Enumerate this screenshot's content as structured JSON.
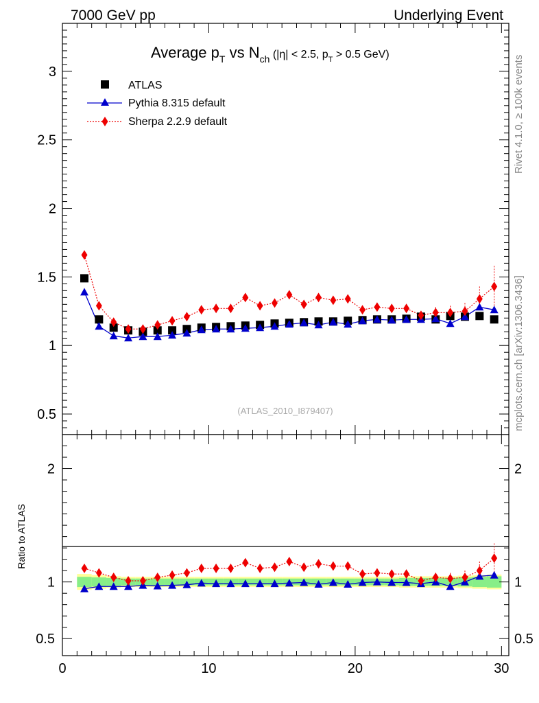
{
  "header": {
    "left": "7000 GeV pp",
    "right": "Underlying Event"
  },
  "side": {
    "rivet": "Rivet 4.1.0, ≥ 100k events",
    "mcplots": "mcplots.cern.ch [arXiv:1306.3436]"
  },
  "plot_title": {
    "main_a": "Average p",
    "sub_a": "T",
    "main_b": " vs N",
    "sub_b": "ch",
    "cut_a": " (|η| < 2.5, p",
    "cut_sub": "T",
    "cut_b": " > 0.5 GeV)"
  },
  "analysis_label": "(ATLAS_2010_I879407)",
  "colors": {
    "atlas": "#000000",
    "pythia": "#0000cc",
    "sherpa": "#ee0000",
    "band_inner": "#88ee88",
    "band_outer": "#ffff99"
  },
  "chart_data": [
    {
      "type": "scatter",
      "name": "main",
      "title": "Average pT vs Nch (|η| < 2.5, pT > 0.5 GeV)",
      "xlabel": "",
      "ylabel": "",
      "xlim": [
        0,
        30.5
      ],
      "ylim": [
        0.35,
        3.35
      ],
      "yticks": [
        0.5,
        1,
        1.5,
        2,
        2.5,
        3
      ],
      "ytick_labels": [
        "0.5",
        "1",
        "1.5",
        "2",
        "2.5",
        "3"
      ],
      "x": [
        1.5,
        2.5,
        3.5,
        4.5,
        5.5,
        6.5,
        7.5,
        8.5,
        9.5,
        10.5,
        11.5,
        12.5,
        13.5,
        14.5,
        15.5,
        16.5,
        17.5,
        18.5,
        19.5,
        20.5,
        21.5,
        22.5,
        23.5,
        24.5,
        25.5,
        26.5,
        27.5,
        28.5,
        29.5
      ],
      "series": [
        {
          "name": "ATLAS",
          "marker": "square",
          "values": [
            1.49,
            1.19,
            1.13,
            1.11,
            1.1,
            1.11,
            1.11,
            1.12,
            1.13,
            1.135,
            1.14,
            1.145,
            1.15,
            1.16,
            1.165,
            1.17,
            1.175,
            1.175,
            1.18,
            1.185,
            1.19,
            1.19,
            1.195,
            1.21,
            1.19,
            1.215,
            1.21,
            1.215,
            1.19
          ]
        },
        {
          "name": "Pythia 8.315 default",
          "marker": "triangle",
          "values": [
            1.39,
            1.14,
            1.07,
            1.055,
            1.065,
            1.065,
            1.075,
            1.09,
            1.115,
            1.12,
            1.12,
            1.125,
            1.13,
            1.14,
            1.155,
            1.165,
            1.15,
            1.17,
            1.155,
            1.18,
            1.19,
            1.185,
            1.19,
            1.19,
            1.195,
            1.16,
            1.21,
            1.28,
            1.26
          ]
        },
        {
          "name": "Sherpa 2.2.9 default",
          "marker": "diamond",
          "values": [
            1.66,
            1.29,
            1.17,
            1.12,
            1.12,
            1.15,
            1.18,
            1.21,
            1.26,
            1.27,
            1.27,
            1.35,
            1.29,
            1.31,
            1.37,
            1.3,
            1.35,
            1.33,
            1.34,
            1.26,
            1.28,
            1.27,
            1.27,
            1.22,
            1.24,
            1.24,
            1.25,
            1.34,
            1.43
          ],
          "errors": [
            0,
            0,
            0,
            0,
            0,
            0,
            0,
            0,
            0,
            0,
            0,
            0,
            0,
            0,
            0,
            0,
            0,
            0,
            0,
            0,
            0.02,
            0.02,
            0.03,
            0.03,
            0.04,
            0.05,
            0.06,
            0.09,
            0.15
          ]
        }
      ],
      "legend": [
        "ATLAS",
        "Pythia 8.315 default",
        "Sherpa 2.2.9 default"
      ],
      "legend_position": "top-left"
    },
    {
      "type": "scatter",
      "name": "ratio",
      "title": "",
      "xlabel": "",
      "ylabel": "Ratio to ATLAS",
      "xlim": [
        0,
        30.5
      ],
      "ylim": [
        0.35,
        2.3
      ],
      "yticks": [
        0.5,
        1,
        2
      ],
      "ytick_labels": [
        "0.5",
        "1",
        "2"
      ],
      "xticks": [
        0,
        10,
        20,
        30
      ],
      "xtick_labels": [
        "0",
        "10",
        "20",
        "30"
      ],
      "x": [
        1.5,
        2.5,
        3.5,
        4.5,
        5.5,
        6.5,
        7.5,
        8.5,
        9.5,
        10.5,
        11.5,
        12.5,
        13.5,
        14.5,
        15.5,
        16.5,
        17.5,
        18.5,
        19.5,
        20.5,
        21.5,
        22.5,
        23.5,
        24.5,
        25.5,
        26.5,
        27.5,
        28.5,
        29.5
      ],
      "band_inner": [
        0.045,
        0.04,
        0.035,
        0.03,
        0.03,
        0.03,
        0.03,
        0.03,
        0.03,
        0.03,
        0.03,
        0.03,
        0.03,
        0.03,
        0.03,
        0.03,
        0.03,
        0.03,
        0.03,
        0.03,
        0.03,
        0.03,
        0.035,
        0.035,
        0.035,
        0.035,
        0.04,
        0.045,
        0.05
      ],
      "band_outer": [
        0.07,
        0.06,
        0.05,
        0.045,
        0.045,
        0.045,
        0.045,
        0.045,
        0.045,
        0.045,
        0.045,
        0.045,
        0.045,
        0.045,
        0.045,
        0.045,
        0.045,
        0.045,
        0.045,
        0.045,
        0.045,
        0.045,
        0.05,
        0.05,
        0.05,
        0.05,
        0.055,
        0.06,
        0.065
      ],
      "series": [
        {
          "name": "Pythia 8.315 default",
          "values": [
            0.94,
            0.96,
            0.96,
            0.96,
            0.97,
            0.965,
            0.97,
            0.975,
            0.99,
            0.985,
            0.985,
            0.985,
            0.985,
            0.985,
            0.99,
            0.995,
            0.98,
            0.995,
            0.98,
            0.995,
            1.0,
            0.995,
            0.995,
            0.985,
            1.0,
            0.96,
            1.0,
            1.05,
            1.06
          ]
        },
        {
          "name": "Sherpa 2.2.9 default",
          "values": [
            1.12,
            1.08,
            1.04,
            1.01,
            1.01,
            1.04,
            1.06,
            1.08,
            1.12,
            1.12,
            1.12,
            1.17,
            1.12,
            1.13,
            1.18,
            1.13,
            1.16,
            1.14,
            1.14,
            1.07,
            1.08,
            1.07,
            1.07,
            1.01,
            1.04,
            1.03,
            1.04,
            1.1,
            1.21
          ],
          "errors": [
            0,
            0,
            0,
            0,
            0,
            0,
            0,
            0,
            0,
            0,
            0,
            0,
            0,
            0,
            0,
            0,
            0,
            0,
            0,
            0,
            0.02,
            0.02,
            0.03,
            0.03,
            0.04,
            0.05,
            0.06,
            0.08,
            0.13
          ]
        }
      ]
    }
  ]
}
